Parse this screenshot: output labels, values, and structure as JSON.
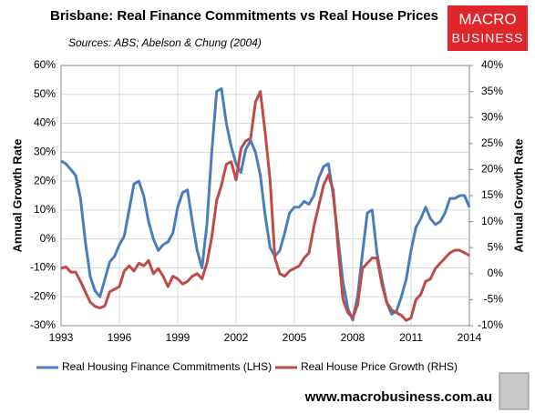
{
  "chart_data": {
    "type": "line",
    "title": "Brisbane: Real Finance Commitments vs Real House Prices",
    "subtitle": "Sources: ABS; Abelson & Chung (2004)",
    "y_label": "Annual Growth Rate",
    "y2_label": "Annual Growth Rate",
    "logo": [
      "MACRO",
      "BUSINESS"
    ],
    "footer": "www.macrobusiness.com.au",
    "grid": true,
    "legend": "bottom",
    "xlim": [
      1993,
      2014
    ],
    "xticks": [
      1993,
      1996,
      1999,
      2002,
      2005,
      2008,
      2011,
      2014
    ],
    "ylim": [
      -30,
      60
    ],
    "yticks": [
      {
        "value": -30,
        "label": "-30%"
      },
      {
        "value": -20,
        "label": "-20%"
      },
      {
        "value": -10,
        "label": "-10%"
      },
      {
        "value": 0,
        "label": "0%"
      },
      {
        "value": 10,
        "label": "10%"
      },
      {
        "value": 20,
        "label": "20%"
      },
      {
        "value": 30,
        "label": "30%"
      },
      {
        "value": 40,
        "label": "40%"
      },
      {
        "value": 50,
        "label": "50%"
      },
      {
        "value": 60,
        "label": "60%"
      }
    ],
    "y2lim": [
      -10,
      40
    ],
    "y2ticks": [
      {
        "value": -10,
        "label": "-10%"
      },
      {
        "value": -5,
        "label": "-5%"
      },
      {
        "value": 0,
        "label": "0%"
      },
      {
        "value": 5,
        "label": "5%"
      },
      {
        "value": 10,
        "label": "10%"
      },
      {
        "value": 15,
        "label": "15%"
      },
      {
        "value": 20,
        "label": "20%"
      },
      {
        "value": 25,
        "label": "25%"
      },
      {
        "value": 30,
        "label": "30%"
      },
      {
        "value": 35,
        "label": "35%"
      },
      {
        "value": 40,
        "label": "40%"
      }
    ],
    "x": [
      1993,
      1993.25,
      1993.5,
      1993.75,
      1994,
      1994.25,
      1994.5,
      1994.75,
      1995,
      1995.25,
      1995.5,
      1995.75,
      1996,
      1996.25,
      1996.5,
      1996.75,
      1997,
      1997.25,
      1997.5,
      1997.75,
      1998,
      1998.25,
      1998.5,
      1998.75,
      1999,
      1999.25,
      1999.5,
      1999.75,
      2000,
      2000.25,
      2000.5,
      2000.75,
      2001,
      2001.25,
      2001.5,
      2001.75,
      2002,
      2002.25,
      2002.5,
      2002.75,
      2003,
      2003.25,
      2003.5,
      2003.75,
      2004,
      2004.25,
      2004.5,
      2004.75,
      2005,
      2005.25,
      2005.5,
      2005.75,
      2006,
      2006.25,
      2006.5,
      2006.75,
      2007,
      2007.25,
      2007.5,
      2007.75,
      2008,
      2008.25,
      2008.5,
      2008.75,
      2009,
      2009.25,
      2009.5,
      2009.75,
      2010,
      2010.25,
      2010.5,
      2010.75,
      2011,
      2011.25,
      2011.5,
      2011.75,
      2012,
      2012.25,
      2012.5,
      2012.75,
      2013,
      2013.25,
      2013.5,
      2013.75,
      2014
    ],
    "series": [
      {
        "name": "Real Housing Finance Commitments (LHS)",
        "color": "#4a7ebb",
        "values": [
          27,
          26,
          24,
          22,
          14,
          -1,
          -13,
          -18,
          -20,
          -14,
          -8,
          -6,
          -2,
          1,
          10,
          19,
          20,
          15,
          6,
          0,
          -4,
          -2,
          -1,
          2,
          11,
          16,
          17,
          6,
          -4,
          -10,
          5,
          30,
          51,
          52,
          40,
          32,
          26,
          23,
          31,
          34,
          30,
          22,
          8,
          -3,
          -6,
          -4,
          2,
          9,
          11,
          11,
          13,
          12,
          15,
          21,
          25,
          26,
          15,
          0,
          -15,
          -24,
          -28,
          -20,
          -5,
          9,
          10,
          -5,
          -14,
          -22,
          -26,
          -25,
          -20,
          -14,
          -4,
          4,
          7,
          11,
          7,
          5,
          6,
          9,
          14,
          14,
          15,
          15,
          11
        ]
      },
      {
        "name": "Real House Price Growth (RHS)",
        "color": "#be4b48",
        "axis": "y2",
        "values": [
          1,
          1.3,
          0.3,
          0.3,
          -1.5,
          -3.5,
          -5.5,
          -6.3,
          -6.6,
          -6.2,
          -3.5,
          -3,
          -2.5,
          0.5,
          1.5,
          0.5,
          2,
          1.5,
          2.5,
          0,
          1,
          -0.5,
          -2.5,
          -0.5,
          -1,
          -2,
          -1.5,
          -0.5,
          0,
          -1,
          2,
          7,
          14,
          17,
          21,
          21.5,
          18,
          24,
          25.5,
          26,
          33,
          35,
          27,
          18,
          3,
          0,
          -0.5,
          0.5,
          1,
          1.5,
          3,
          4,
          9,
          13,
          17,
          19,
          16,
          5,
          -5,
          -7.5,
          -8.5,
          -6,
          1,
          2,
          3,
          3,
          -2,
          -5.5,
          -7,
          -7.5,
          -8,
          -9,
          -8.5,
          -5,
          -4,
          -1.5,
          -1,
          1,
          2,
          3,
          4,
          4.5,
          4.5,
          4,
          3.5
        ]
      }
    ]
  }
}
